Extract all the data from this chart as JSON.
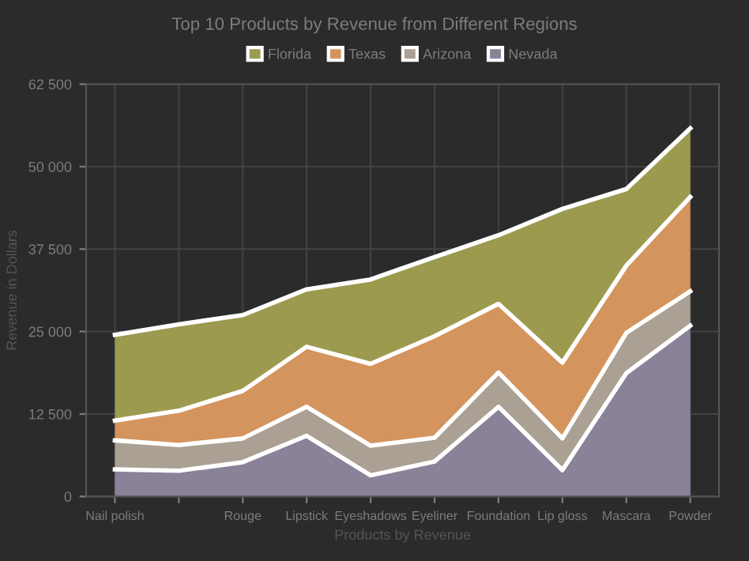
{
  "chart_data": {
    "type": "area",
    "stacked": true,
    "title": "Top 10 Products by Revenue from Different Regions",
    "xlabel": "Products by Revenue",
    "ylabel": "Revenue in Dollars",
    "categories": [
      "Nail polish",
      null,
      "Rouge",
      "Lipstick",
      "Eyeshadows",
      "Eyeliner",
      "Foundation",
      "Lip gloss",
      "Mascara",
      "Powder"
    ],
    "series": [
      {
        "name": "Nevada",
        "color": "#8a8299",
        "values": [
          4100,
          3900,
          5200,
          9200,
          3200,
          5300,
          13600,
          4000,
          18700,
          25900
        ]
      },
      {
        "name": "Arizona",
        "color": "#aaa093",
        "values": [
          4400,
          3900,
          3600,
          4400,
          4500,
          3600,
          5200,
          4800,
          6100,
          5200
        ]
      },
      {
        "name": "Texas",
        "color": "#d4945e",
        "values": [
          3000,
          5200,
          7200,
          9100,
          12400,
          15400,
          10400,
          11500,
          10200,
          14300
        ]
      },
      {
        "name": "Florida",
        "color": "#9c9a4e",
        "values": [
          13000,
          13100,
          11500,
          8700,
          12800,
          12000,
          10400,
          23300,
          11600,
          10400
        ]
      }
    ],
    "ylim": [
      0,
      62500
    ],
    "yticks": [
      0,
      {
        "value": 12500,
        "label": "12 500"
      },
      {
        "value": 25000,
        "label": "25 000"
      },
      {
        "value": 37500,
        "label": "37 500"
      },
      {
        "value": 50000,
        "label": "50 000"
      },
      {
        "value": 62500,
        "label": "62 500"
      }
    ],
    "grid": true,
    "legend": "top"
  }
}
